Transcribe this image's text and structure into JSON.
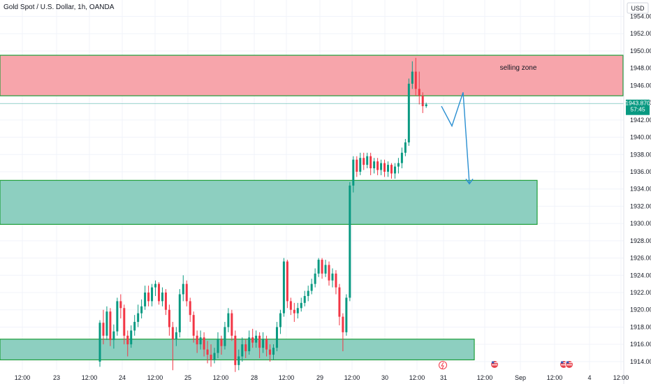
{
  "header": {
    "symbol_text": "Gold Spot / U.S. Dollar, 1h, OANDA"
  },
  "currency_button": "USD",
  "price_badge": {
    "price": "1943.870",
    "countdown": "57:45"
  },
  "colors": {
    "up": "#089981",
    "down": "#f23645",
    "red_zone_fill": "#f7a5ab",
    "teal_zone_fill": "#8dcfc0",
    "zone_border": "#1e9e3a",
    "arrow": "#2a8fd1",
    "badge": "#089981",
    "grid": "#f0f3fa",
    "axis_text": "#131722"
  },
  "chart_data": {
    "type": "candlestick",
    "title": "Gold Spot / U.S. Dollar, 1h, OANDA",
    "xlabel": "",
    "ylabel": "",
    "ylim": [
      1912.4,
      1955.2
    ],
    "y_ticks": [
      "1954.000",
      "1952.000",
      "1950.000",
      "1948.000",
      "1946.000",
      "1944.000",
      "1942.000",
      "1940.000",
      "1938.000",
      "1936.000",
      "1934.000",
      "1932.000",
      "1930.000",
      "1928.000",
      "1926.000",
      "1924.000",
      "1922.000",
      "1920.000",
      "1918.000",
      "1916.000",
      "1914.000"
    ],
    "x_ticks": [
      "12:00",
      "23",
      "12:00",
      "24",
      "12:00",
      "25",
      "12:00",
      "28",
      "12:00",
      "29",
      "12:00",
      "30",
      "12:00",
      "31",
      "12:00",
      "Sep",
      "12:00",
      "4",
      "12:00"
    ],
    "last_price": 1943.87,
    "zones": [
      {
        "label": "selling zone",
        "kind": "resistance",
        "from": 1944.8,
        "to": 1949.5
      },
      {
        "label": "",
        "kind": "support",
        "from": 1929.9,
        "to": 1935.0
      },
      {
        "label": "",
        "kind": "support",
        "from": 1914.2,
        "to": 1916.6
      }
    ],
    "projection": [
      1943.6,
      1941.3,
      1945.2,
      1934.6
    ],
    "candles": [
      [
        1914.0,
        1918.5,
        1913.4,
        1918.8
      ],
      [
        1918.5,
        1917.0,
        1916.0,
        1920.0
      ],
      [
        1917.0,
        1919.8,
        1916.5,
        1920.4
      ],
      [
        1919.8,
        1916.5,
        1915.8,
        1920.2
      ],
      [
        1916.5,
        1917.5,
        1915.5,
        1918.3
      ],
      [
        1917.5,
        1921.0,
        1917.0,
        1921.4
      ],
      [
        1921.0,
        1920.2,
        1919.0,
        1921.8
      ],
      [
        1920.2,
        1917.0,
        1916.0,
        1920.6
      ],
      [
        1917.0,
        1916.0,
        1914.6,
        1917.6
      ],
      [
        1916.0,
        1917.6,
        1915.6,
        1918.2
      ],
      [
        1917.6,
        1918.6,
        1917.0,
        1919.4
      ],
      [
        1918.6,
        1919.6,
        1918.0,
        1920.6
      ],
      [
        1919.6,
        1920.4,
        1919.0,
        1921.2
      ],
      [
        1920.4,
        1922.0,
        1920.0,
        1922.8
      ],
      [
        1922.0,
        1921.0,
        1920.4,
        1922.8
      ],
      [
        1921.0,
        1922.6,
        1920.4,
        1923.0
      ],
      [
        1922.6,
        1923.0,
        1921.6,
        1923.4
      ],
      [
        1923.0,
        1921.0,
        1920.6,
        1923.2
      ],
      [
        1921.0,
        1922.0,
        1920.4,
        1922.6
      ],
      [
        1922.0,
        1920.0,
        1919.4,
        1922.4
      ],
      [
        1920.0,
        1918.0,
        1917.0,
        1920.6
      ],
      [
        1918.0,
        1916.6,
        1913.0,
        1918.6
      ],
      [
        1916.6,
        1917.4,
        1915.8,
        1918.0
      ],
      [
        1917.4,
        1921.8,
        1916.8,
        1922.4
      ],
      [
        1921.8,
        1923.0,
        1921.0,
        1924.0
      ],
      [
        1923.0,
        1921.0,
        1920.4,
        1923.4
      ],
      [
        1921.0,
        1919.4,
        1918.6,
        1921.4
      ],
      [
        1919.4,
        1917.0,
        1916.2,
        1919.8
      ],
      [
        1917.0,
        1916.0,
        1915.0,
        1917.6
      ],
      [
        1916.0,
        1916.8,
        1915.4,
        1917.6
      ],
      [
        1916.8,
        1915.4,
        1914.6,
        1917.4
      ],
      [
        1915.4,
        1914.8,
        1913.8,
        1916.4
      ],
      [
        1914.8,
        1914.2,
        1913.4,
        1916.0
      ],
      [
        1914.2,
        1915.0,
        1913.8,
        1915.6
      ],
      [
        1915.0,
        1916.6,
        1914.4,
        1917.4
      ],
      [
        1916.6,
        1915.8,
        1914.8,
        1917.0
      ],
      [
        1915.8,
        1918.0,
        1915.4,
        1918.6
      ],
      [
        1918.0,
        1919.6,
        1917.4,
        1920.2
      ],
      [
        1919.6,
        1917.0,
        1916.4,
        1920.0
      ],
      [
        1917.0,
        1913.6,
        1912.8,
        1917.6
      ],
      [
        1913.6,
        1914.6,
        1913.0,
        1915.4
      ],
      [
        1914.6,
        1916.0,
        1914.0,
        1916.8
      ],
      [
        1916.0,
        1915.2,
        1914.4,
        1916.6
      ],
      [
        1915.2,
        1916.8,
        1914.8,
        1917.6
      ],
      [
        1916.8,
        1916.2,
        1915.6,
        1917.8
      ],
      [
        1916.2,
        1917.0,
        1915.6,
        1917.6
      ],
      [
        1917.0,
        1915.6,
        1914.4,
        1917.4
      ],
      [
        1915.6,
        1916.6,
        1915.0,
        1917.4
      ],
      [
        1916.6,
        1915.4,
        1914.6,
        1917.0
      ],
      [
        1915.4,
        1914.8,
        1914.0,
        1916.0
      ],
      [
        1914.8,
        1915.6,
        1914.2,
        1916.0
      ],
      [
        1915.6,
        1918.0,
        1915.2,
        1918.6
      ],
      [
        1918.0,
        1919.6,
        1917.2,
        1920.0
      ],
      [
        1919.6,
        1925.6,
        1919.2,
        1926.0
      ],
      [
        1925.6,
        1921.0,
        1920.2,
        1925.8
      ],
      [
        1921.0,
        1920.0,
        1919.4,
        1921.4
      ],
      [
        1920.0,
        1919.6,
        1918.6,
        1920.8
      ],
      [
        1919.6,
        1920.2,
        1919.0,
        1920.8
      ],
      [
        1920.2,
        1920.8,
        1919.8,
        1921.4
      ],
      [
        1920.8,
        1921.6,
        1920.4,
        1922.2
      ],
      [
        1921.6,
        1922.2,
        1921.0,
        1922.8
      ],
      [
        1922.2,
        1923.0,
        1921.8,
        1923.6
      ],
      [
        1923.0,
        1924.2,
        1922.6,
        1924.8
      ],
      [
        1924.2,
        1925.8,
        1923.8,
        1926.0
      ],
      [
        1925.8,
        1924.2,
        1923.6,
        1926.0
      ],
      [
        1924.2,
        1925.2,
        1923.8,
        1925.8
      ],
      [
        1925.2,
        1923.4,
        1922.8,
        1925.6
      ],
      [
        1923.4,
        1924.2,
        1922.6,
        1924.8
      ],
      [
        1924.2,
        1922.6,
        1921.8,
        1924.6
      ],
      [
        1922.6,
        1919.2,
        1918.2,
        1923.0
      ],
      [
        1919.2,
        1917.4,
        1915.2,
        1919.6
      ],
      [
        1917.4,
        1921.4,
        1917.0,
        1921.8
      ],
      [
        1921.4,
        1934.4,
        1921.0,
        1934.8
      ],
      [
        1934.4,
        1937.4,
        1933.6,
        1937.8
      ],
      [
        1937.4,
        1936.0,
        1935.4,
        1937.8
      ],
      [
        1936.0,
        1937.6,
        1935.6,
        1938.2
      ],
      [
        1937.6,
        1936.8,
        1936.2,
        1938.2
      ],
      [
        1936.8,
        1937.8,
        1936.4,
        1938.2
      ],
      [
        1937.8,
        1936.4,
        1935.6,
        1938.2
      ],
      [
        1936.4,
        1937.2,
        1935.8,
        1937.6
      ],
      [
        1937.2,
        1936.2,
        1935.6,
        1937.6
      ],
      [
        1936.2,
        1937.0,
        1935.6,
        1937.4
      ],
      [
        1937.0,
        1936.0,
        1935.4,
        1937.4
      ],
      [
        1936.0,
        1936.8,
        1935.4,
        1937.2
      ],
      [
        1936.8,
        1935.8,
        1935.2,
        1937.0
      ],
      [
        1935.8,
        1936.6,
        1935.2,
        1937.0
      ],
      [
        1936.6,
        1937.0,
        1935.8,
        1937.6
      ],
      [
        1937.0,
        1938.2,
        1936.4,
        1938.8
      ],
      [
        1938.2,
        1939.4,
        1937.8,
        1939.8
      ],
      [
        1939.4,
        1946.2,
        1939.0,
        1946.8
      ],
      [
        1946.2,
        1947.6,
        1945.6,
        1948.8
      ],
      [
        1947.6,
        1945.6,
        1944.8,
        1949.2
      ],
      [
        1945.6,
        1944.8,
        1943.8,
        1947.6
      ],
      [
        1944.8,
        1943.6,
        1942.8,
        1945.2
      ],
      [
        1943.6,
        1943.8,
        1943.4,
        1944.0
      ]
    ]
  }
}
